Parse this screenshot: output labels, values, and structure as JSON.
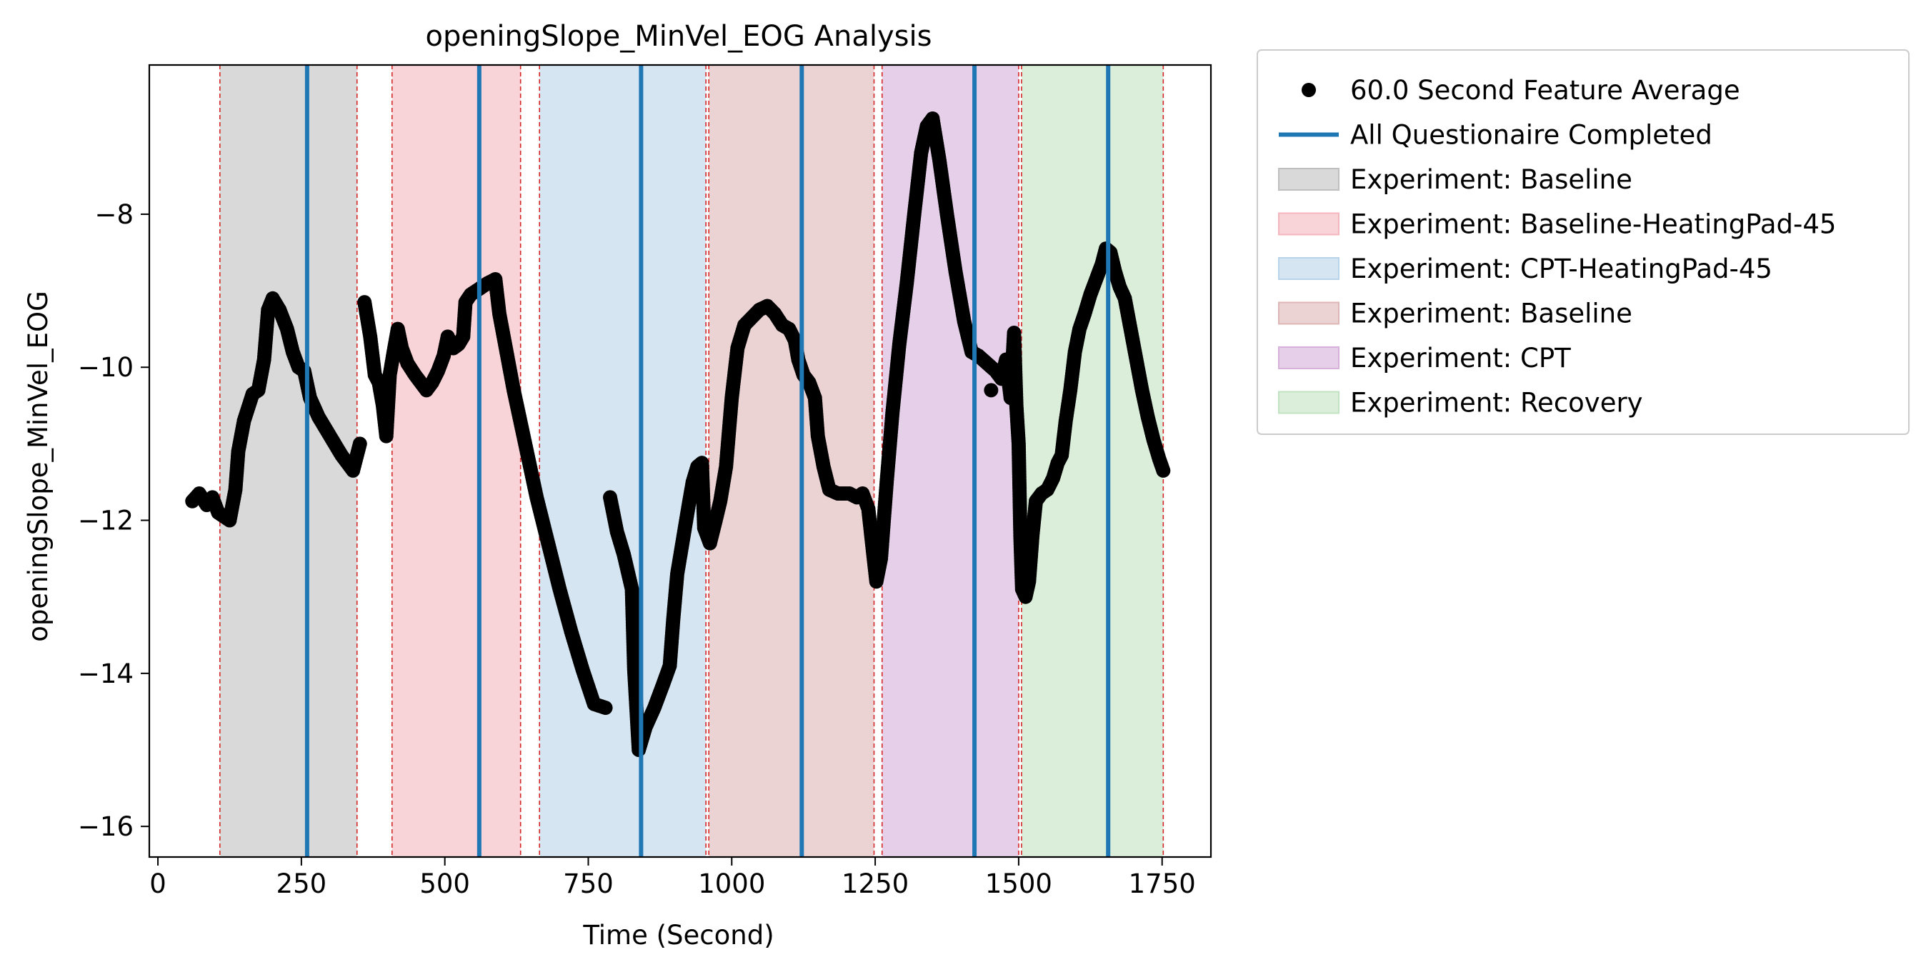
{
  "chart_data": {
    "type": "scatter",
    "title": "openingSlope_MinVel_EOG Analysis",
    "xlabel": "Time (Second)",
    "ylabel": "openingSlope_MinVel_EOG",
    "xlim": [
      -15,
      1835
    ],
    "ylim": [
      -16.4,
      -6.05
    ],
    "xticks": [
      0,
      250,
      500,
      750,
      1000,
      1250,
      1500,
      1750
    ],
    "xtick_labels": [
      "0",
      "250",
      "500",
      "750",
      "1000",
      "1250",
      "1500",
      "1750"
    ],
    "yticks": [
      -16,
      -14,
      -12,
      -10,
      -8
    ],
    "ytick_labels": [
      "−16",
      "−14",
      "−12",
      "−10",
      "−8"
    ],
    "grid": false,
    "legend_placement": "outside-top-right",
    "regions": [
      {
        "label": "Experiment: Baseline",
        "start": 108,
        "end": 347,
        "color": "#bfbfbf"
      },
      {
        "label": "Experiment: Baseline-HeatingPad-45",
        "start": 408,
        "end": 632,
        "color": "#f4b6bd"
      },
      {
        "label": "Experiment: CPT-HeatingPad-45",
        "start": 665,
        "end": 955,
        "color": "#b9d3e8"
      },
      {
        "label": "Experiment: Baseline",
        "start": 960,
        "end": 1248,
        "color": "#dfb6b6"
      },
      {
        "label": "Experiment: CPT",
        "start": 1262,
        "end": 1500,
        "color": "#d6b1da"
      },
      {
        "label": "Experiment: Recovery",
        "start": 1505,
        "end": 1752,
        "color": "#c2e3c1"
      }
    ],
    "region_boundaries": [
      108,
      347,
      408,
      632,
      665,
      955,
      960,
      1248,
      1262,
      1500,
      1505,
      1752
    ],
    "questionnaire_lines": [
      260,
      560,
      842,
      1122,
      1423,
      1656
    ],
    "series": [
      {
        "name": "60.0 Second Feature Average",
        "kind": "points",
        "color": "#000000",
        "segments": [
          [
            [
              60,
              -11.75
            ],
            [
              72,
              -11.65
            ],
            [
              85,
              -11.8
            ],
            [
              95,
              -11.7
            ],
            [
              105,
              -11.9
            ],
            [
              115,
              -11.95
            ],
            [
              125,
              -12.0
            ],
            [
              135,
              -11.6
            ],
            [
              140,
              -11.1
            ],
            [
              150,
              -10.7
            ],
            [
              165,
              -10.35
            ],
            [
              175,
              -10.3
            ],
            [
              185,
              -9.9
            ],
            [
              192,
              -9.25
            ],
            [
              200,
              -9.1
            ],
            [
              212,
              -9.25
            ],
            [
              225,
              -9.5
            ],
            [
              235,
              -9.8
            ],
            [
              245,
              -10.0
            ],
            [
              255,
              -10.05
            ],
            [
              265,
              -10.4
            ],
            [
              280,
              -10.65
            ],
            [
              300,
              -10.9
            ],
            [
              320,
              -11.15
            ],
            [
              340,
              -11.35
            ],
            [
              352,
              -11.0
            ]
          ],
          [
            [
              360,
              -9.15
            ],
            [
              370,
              -9.6
            ],
            [
              378,
              -10.1
            ],
            [
              385,
              -10.2
            ],
            [
              392,
              -10.5
            ],
            [
              398,
              -10.9
            ],
            [
              404,
              -10.1
            ],
            [
              412,
              -9.75
            ],
            [
              418,
              -9.5
            ],
            [
              425,
              -9.75
            ],
            [
              435,
              -9.95
            ],
            [
              448,
              -10.1
            ],
            [
              458,
              -10.2
            ],
            [
              468,
              -10.3
            ],
            [
              478,
              -10.2
            ],
            [
              488,
              -10.05
            ],
            [
              498,
              -9.85
            ],
            [
              505,
              -9.6
            ],
            [
              515,
              -9.75
            ],
            [
              524,
              -9.7
            ],
            [
              532,
              -9.6
            ],
            [
              536,
              -9.15
            ],
            [
              545,
              -9.05
            ],
            [
              555,
              -9.0
            ],
            [
              565,
              -8.95
            ],
            [
              575,
              -8.9
            ],
            [
              588,
              -8.85
            ],
            [
              595,
              -9.3
            ],
            [
              605,
              -9.7
            ],
            [
              620,
              -10.3
            ],
            [
              640,
              -11.0
            ],
            [
              660,
              -11.7
            ],
            [
              680,
              -12.3
            ],
            [
              700,
              -12.9
            ],
            [
              720,
              -13.45
            ],
            [
              740,
              -13.95
            ],
            [
              760,
              -14.4
            ],
            [
              780,
              -14.45
            ]
          ],
          [
            [
              788,
              -11.7
            ],
            [
              800,
              -12.15
            ],
            [
              812,
              -12.45
            ],
            [
              826,
              -12.9
            ],
            [
              830,
              -13.95
            ],
            [
              838,
              -15.0
            ],
            [
              850,
              -14.7
            ],
            [
              865,
              -14.45
            ],
            [
              880,
              -14.15
            ],
            [
              892,
              -13.9
            ],
            [
              898,
              -13.3
            ],
            [
              905,
              -12.7
            ],
            [
              915,
              -12.25
            ],
            [
              925,
              -11.8
            ],
            [
              932,
              -11.5
            ],
            [
              940,
              -11.3
            ],
            [
              948,
              -11.25
            ],
            [
              952,
              -12.1
            ],
            [
              962,
              -12.3
            ],
            [
              972,
              -12.0
            ],
            [
              980,
              -11.75
            ],
            [
              990,
              -11.3
            ],
            [
              1000,
              -10.4
            ],
            [
              1010,
              -9.75
            ],
            [
              1022,
              -9.45
            ],
            [
              1035,
              -9.35
            ],
            [
              1048,
              -9.25
            ],
            [
              1062,
              -9.2
            ],
            [
              1075,
              -9.3
            ],
            [
              1088,
              -9.45
            ],
            [
              1100,
              -9.5
            ],
            [
              1110,
              -9.65
            ],
            [
              1116,
              -9.9
            ],
            [
              1125,
              -10.1
            ],
            [
              1135,
              -10.2
            ],
            [
              1145,
              -10.4
            ],
            [
              1150,
              -10.9
            ],
            [
              1160,
              -11.3
            ],
            [
              1170,
              -11.6
            ],
            [
              1185,
              -11.65
            ],
            [
              1205,
              -11.65
            ],
            [
              1218,
              -11.7
            ],
            [
              1228,
              -11.65
            ],
            [
              1238,
              -11.85
            ],
            [
              1246,
              -12.4
            ],
            [
              1252,
              -12.8
            ],
            [
              1260,
              -12.5
            ],
            [
              1270,
              -11.5
            ],
            [
              1280,
              -10.6
            ],
            [
              1292,
              -9.7
            ],
            [
              1305,
              -8.9
            ],
            [
              1318,
              -8.0
            ],
            [
              1330,
              -7.2
            ],
            [
              1340,
              -6.85
            ],
            [
              1350,
              -6.75
            ],
            [
              1362,
              -7.3
            ],
            [
              1375,
              -8.0
            ],
            [
              1390,
              -8.75
            ],
            [
              1405,
              -9.4
            ],
            [
              1418,
              -9.8
            ],
            [
              1430,
              -9.85
            ],
            [
              1445,
              -9.95
            ],
            [
              1460,
              -10.05
            ],
            [
              1470,
              -10.15
            ],
            [
              1478,
              -9.9
            ],
            [
              1486,
              -10.4
            ],
            [
              1492,
              -9.55
            ],
            [
              1496,
              -10.5
            ],
            [
              1500,
              -11.0
            ],
            [
              1503,
              -12.2
            ],
            [
              1506,
              -12.9
            ],
            [
              1512,
              -13.0
            ],
            [
              1518,
              -12.8
            ],
            [
              1524,
              -12.2
            ],
            [
              1530,
              -11.75
            ],
            [
              1540,
              -11.65
            ],
            [
              1550,
              -11.6
            ],
            [
              1560,
              -11.45
            ],
            [
              1568,
              -11.25
            ],
            [
              1575,
              -11.15
            ],
            [
              1582,
              -10.7
            ],
            [
              1590,
              -10.3
            ],
            [
              1598,
              -9.8
            ],
            [
              1606,
              -9.5
            ],
            [
              1615,
              -9.3
            ],
            [
              1625,
              -9.05
            ],
            [
              1635,
              -8.85
            ],
            [
              1645,
              -8.65
            ],
            [
              1652,
              -8.45
            ],
            [
              1660,
              -8.5
            ],
            [
              1668,
              -8.75
            ],
            [
              1676,
              -8.95
            ],
            [
              1685,
              -9.1
            ],
            [
              1695,
              -9.5
            ],
            [
              1705,
              -9.9
            ],
            [
              1715,
              -10.3
            ],
            [
              1725,
              -10.65
            ],
            [
              1735,
              -10.95
            ],
            [
              1745,
              -11.2
            ],
            [
              1752,
              -11.35
            ]
          ]
        ],
        "scatter_outliers": [
          [
            393,
            -10.2
          ],
          [
            1452,
            -10.3
          ]
        ]
      },
      {
        "name": "All Questionaire Completed",
        "kind": "vline",
        "color": "#1f77b4"
      }
    ],
    "legend": [
      {
        "label": "60.0 Second Feature Average",
        "kind": "marker",
        "color": "#000000"
      },
      {
        "label": "All Questionaire Completed",
        "kind": "line",
        "color": "#1f77b4"
      },
      {
        "label": "Experiment: Baseline",
        "kind": "patch",
        "color": "#bfbfbf"
      },
      {
        "label": "Experiment: Baseline-HeatingPad-45",
        "kind": "patch",
        "color": "#f4b6bd"
      },
      {
        "label": "Experiment: CPT-HeatingPad-45",
        "kind": "patch",
        "color": "#b9d3e8"
      },
      {
        "label": "Experiment: Baseline",
        "kind": "patch",
        "color": "#dfb6b6"
      },
      {
        "label": "Experiment: CPT",
        "kind": "patch",
        "color": "#d6b1da"
      },
      {
        "label": "Experiment: Recovery",
        "kind": "patch",
        "color": "#c2e3c1"
      }
    ]
  }
}
